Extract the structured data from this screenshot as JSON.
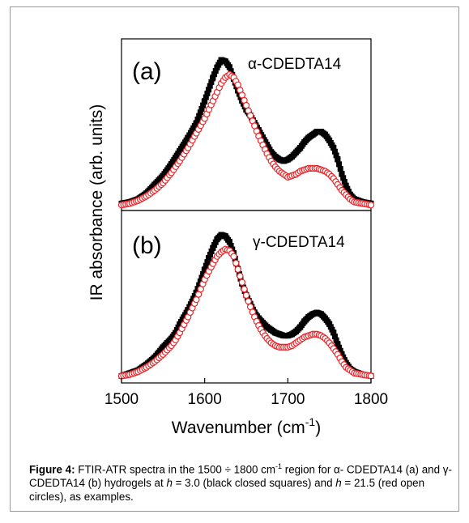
{
  "chart_data": {
    "type": "scatter",
    "xlabel_main": "Wavenumber (cm",
    "xlabel_exp": "-1",
    "xlabel_close": ")",
    "ylabel": "IR absorbance (arb. units)",
    "xlim": [
      1500,
      1800
    ],
    "x_ticks": [
      "1500",
      "1600",
      "1700",
      "1800"
    ],
    "panels": [
      {
        "label": "(a)",
        "title": "α-CDEDTA14",
        "series": [
          {
            "marker": "filled-square",
            "color": "#000000",
            "points": [
              [
                1500,
                0.02
              ],
              [
                1510,
                0.03
              ],
              [
                1520,
                0.05
              ],
              [
                1530,
                0.09
              ],
              [
                1540,
                0.15
              ],
              [
                1550,
                0.21
              ],
              [
                1560,
                0.29
              ],
              [
                1570,
                0.38
              ],
              [
                1580,
                0.47
              ],
              [
                1590,
                0.57
              ],
              [
                1600,
                0.72
              ],
              [
                1610,
                0.88
              ],
              [
                1615,
                0.95
              ],
              [
                1620,
                1.0
              ],
              [
                1625,
                0.99
              ],
              [
                1630,
                0.95
              ],
              [
                1635,
                0.87
              ],
              [
                1640,
                0.79
              ],
              [
                1645,
                0.72
              ],
              [
                1650,
                0.66
              ],
              [
                1655,
                0.62
              ],
              [
                1660,
                0.57
              ],
              [
                1665,
                0.52
              ],
              [
                1670,
                0.47
              ],
              [
                1675,
                0.42
              ],
              [
                1680,
                0.37
              ],
              [
                1685,
                0.34
              ],
              [
                1690,
                0.32
              ],
              [
                1695,
                0.31
              ],
              [
                1700,
                0.32
              ],
              [
                1705,
                0.34
              ],
              [
                1710,
                0.37
              ],
              [
                1715,
                0.4
              ],
              [
                1720,
                0.44
              ],
              [
                1725,
                0.47
              ],
              [
                1730,
                0.49
              ],
              [
                1735,
                0.51
              ],
              [
                1740,
                0.51
              ],
              [
                1745,
                0.49
              ],
              [
                1750,
                0.45
              ],
              [
                1755,
                0.4
              ],
              [
                1760,
                0.32
              ],
              [
                1765,
                0.22
              ],
              [
                1770,
                0.14
              ],
              [
                1775,
                0.08
              ],
              [
                1780,
                0.05
              ],
              [
                1790,
                0.03
              ],
              [
                1800,
                0.02
              ]
            ]
          },
          {
            "marker": "open-circle",
            "color": "#e8262a",
            "points": [
              [
                1500,
                0.01
              ],
              [
                1510,
                0.02
              ],
              [
                1520,
                0.04
              ],
              [
                1530,
                0.07
              ],
              [
                1540,
                0.11
              ],
              [
                1550,
                0.16
              ],
              [
                1560,
                0.23
              ],
              [
                1570,
                0.31
              ],
              [
                1580,
                0.4
              ],
              [
                1590,
                0.5
              ],
              [
                1600,
                0.6
              ],
              [
                1610,
                0.72
              ],
              [
                1615,
                0.78
              ],
              [
                1620,
                0.84
              ],
              [
                1625,
                0.88
              ],
              [
                1630,
                0.9
              ],
              [
                1635,
                0.88
              ],
              [
                1640,
                0.83
              ],
              [
                1645,
                0.76
              ],
              [
                1650,
                0.69
              ],
              [
                1655,
                0.62
              ],
              [
                1660,
                0.55
              ],
              [
                1665,
                0.48
              ],
              [
                1670,
                0.42
              ],
              [
                1675,
                0.36
              ],
              [
                1680,
                0.31
              ],
              [
                1685,
                0.27
              ],
              [
                1690,
                0.24
              ],
              [
                1695,
                0.22
              ],
              [
                1700,
                0.2
              ],
              [
                1705,
                0.21
              ],
              [
                1710,
                0.22
              ],
              [
                1715,
                0.24
              ],
              [
                1720,
                0.25
              ],
              [
                1725,
                0.26
              ],
              [
                1730,
                0.26
              ],
              [
                1735,
                0.26
              ],
              [
                1740,
                0.25
              ],
              [
                1745,
                0.24
              ],
              [
                1750,
                0.22
              ],
              [
                1755,
                0.19
              ],
              [
                1760,
                0.15
              ],
              [
                1765,
                0.11
              ],
              [
                1770,
                0.08
              ],
              [
                1775,
                0.05
              ],
              [
                1780,
                0.03
              ],
              [
                1790,
                0.02
              ],
              [
                1800,
                0.01
              ]
            ]
          }
        ]
      },
      {
        "label": "(b)",
        "title": "γ-CDEDTA14",
        "series": [
          {
            "marker": "filled-square",
            "color": "#000000",
            "points": [
              [
                1500,
                0.02
              ],
              [
                1510,
                0.04
              ],
              [
                1520,
                0.06
              ],
              [
                1530,
                0.1
              ],
              [
                1540,
                0.15
              ],
              [
                1550,
                0.22
              ],
              [
                1555,
                0.25
              ],
              [
                1560,
                0.28
              ],
              [
                1565,
                0.32
              ],
              [
                1570,
                0.38
              ],
              [
                1580,
                0.48
              ],
              [
                1590,
                0.6
              ],
              [
                1600,
                0.76
              ],
              [
                1605,
                0.84
              ],
              [
                1610,
                0.91
              ],
              [
                1615,
                0.97
              ],
              [
                1620,
                1.0
              ],
              [
                1625,
                0.99
              ],
              [
                1630,
                0.95
              ],
              [
                1635,
                0.87
              ],
              [
                1640,
                0.76
              ],
              [
                1645,
                0.66
              ],
              [
                1650,
                0.58
              ],
              [
                1655,
                0.52
              ],
              [
                1660,
                0.46
              ],
              [
                1665,
                0.42
              ],
              [
                1670,
                0.39
              ],
              [
                1675,
                0.36
              ],
              [
                1680,
                0.34
              ],
              [
                1685,
                0.32
              ],
              [
                1690,
                0.31
              ],
              [
                1695,
                0.3
              ],
              [
                1700,
                0.3
              ],
              [
                1705,
                0.31
              ],
              [
                1710,
                0.33
              ],
              [
                1715,
                0.36
              ],
              [
                1720,
                0.4
              ],
              [
                1725,
                0.43
              ],
              [
                1730,
                0.45
              ],
              [
                1735,
                0.46
              ],
              [
                1740,
                0.45
              ],
              [
                1745,
                0.42
              ],
              [
                1750,
                0.38
              ],
              [
                1755,
                0.32
              ],
              [
                1760,
                0.24
              ],
              [
                1765,
                0.17
              ],
              [
                1770,
                0.11
              ],
              [
                1775,
                0.07
              ],
              [
                1780,
                0.05
              ],
              [
                1790,
                0.03
              ],
              [
                1800,
                0.02
              ]
            ]
          },
          {
            "marker": "open-circle",
            "color": "#e8262a",
            "points": [
              [
                1500,
                0.02
              ],
              [
                1510,
                0.03
              ],
              [
                1520,
                0.05
              ],
              [
                1530,
                0.08
              ],
              [
                1540,
                0.12
              ],
              [
                1550,
                0.17
              ],
              [
                1555,
                0.2
              ],
              [
                1560,
                0.23
              ],
              [
                1565,
                0.27
              ],
              [
                1570,
                0.32
              ],
              [
                1580,
                0.43
              ],
              [
                1590,
                0.55
              ],
              [
                1600,
                0.69
              ],
              [
                1610,
                0.8
              ],
              [
                1615,
                0.85
              ],
              [
                1620,
                0.88
              ],
              [
                1625,
                0.9
              ],
              [
                1630,
                0.89
              ],
              [
                1635,
                0.85
              ],
              [
                1640,
                0.76
              ],
              [
                1645,
                0.67
              ],
              [
                1650,
                0.58
              ],
              [
                1655,
                0.5
              ],
              [
                1660,
                0.43
              ],
              [
                1665,
                0.37
              ],
              [
                1670,
                0.32
              ],
              [
                1675,
                0.28
              ],
              [
                1680,
                0.25
              ],
              [
                1685,
                0.23
              ],
              [
                1690,
                0.22
              ],
              [
                1695,
                0.22
              ],
              [
                1700,
                0.22
              ],
              [
                1705,
                0.23
              ],
              [
                1710,
                0.25
              ],
              [
                1715,
                0.27
              ],
              [
                1720,
                0.29
              ],
              [
                1725,
                0.3
              ],
              [
                1730,
                0.31
              ],
              [
                1735,
                0.31
              ],
              [
                1740,
                0.3
              ],
              [
                1745,
                0.28
              ],
              [
                1750,
                0.25
              ],
              [
                1755,
                0.21
              ],
              [
                1760,
                0.17
              ],
              [
                1765,
                0.12
              ],
              [
                1770,
                0.08
              ],
              [
                1775,
                0.06
              ],
              [
                1780,
                0.04
              ],
              [
                1790,
                0.03
              ],
              [
                1800,
                0.02
              ]
            ]
          }
        ]
      }
    ]
  },
  "caption": {
    "label": "Figure 4:",
    "p1": " FTIR-ATR spectra in the 1500 ÷ 1800 cm",
    "sup": "-1",
    "p2": " region for α- CDEDTA14 (a) and γ-CDEDTA14 (b) hydrogels at ",
    "h1": "h",
    "p3": " = 3.0 (black closed squares) and ",
    "h2": "h",
    "p4": " = 21.5 (red open circles), as examples."
  }
}
